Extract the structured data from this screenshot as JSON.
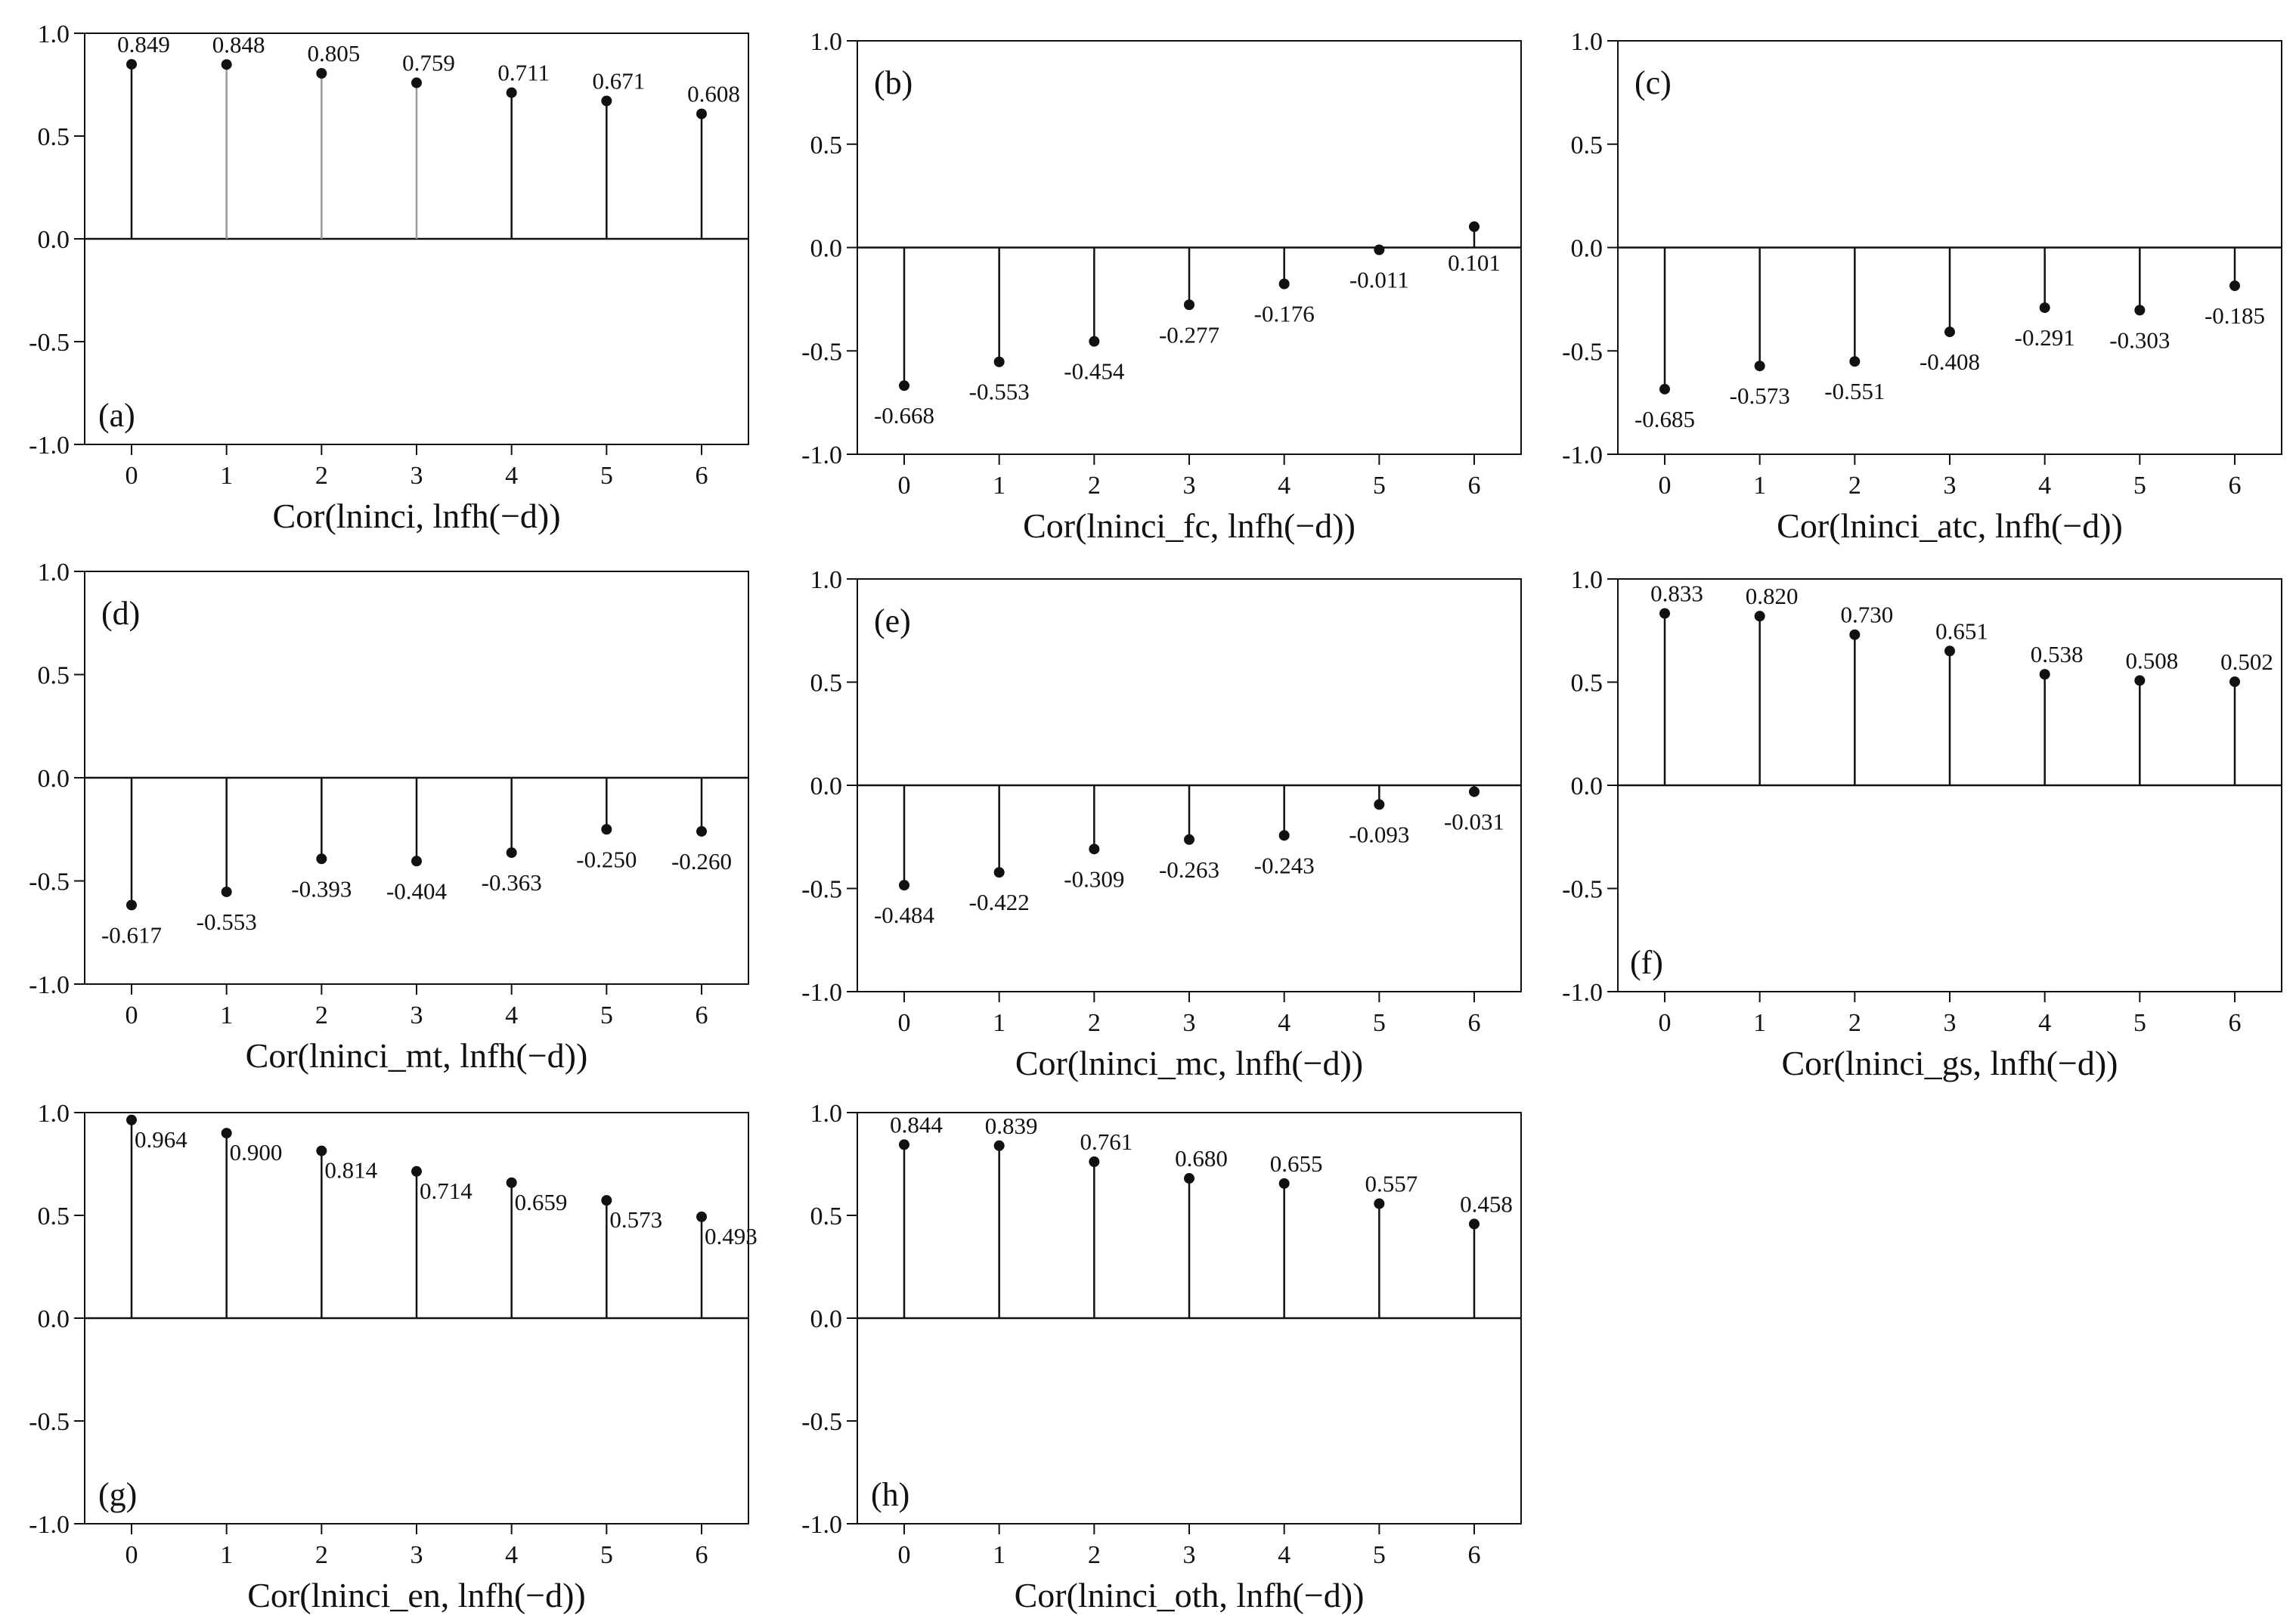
{
  "chart_data": [
    {
      "type": "stem",
      "panel_label": "(a)",
      "xlabel": "Cor(lninci, lnfh(−d))",
      "x": [
        0,
        1,
        2,
        3,
        4,
        5,
        6
      ],
      "values": [
        0.849,
        0.848,
        0.805,
        0.759,
        0.711,
        0.671,
        0.608
      ],
      "value_labels": [
        "0.849",
        "0.848",
        "0.805",
        "0.759",
        "0.711",
        "0.671",
        "0.608"
      ],
      "stem_colors": [
        "#111111",
        "#999999",
        "#999999",
        "#999999",
        "#111111",
        "#111111",
        "#111111"
      ],
      "ylim": [
        -1.0,
        1.0
      ],
      "yticks": [
        1.0,
        0.5,
        0.0,
        -0.5,
        -1.0
      ],
      "ytick_labels": [
        "1.0",
        "0.5",
        "0.0",
        "-0.5",
        "-1.0"
      ],
      "xticks": [
        "0",
        "1",
        "2",
        "3",
        "4",
        "5",
        "6"
      ],
      "label_placement": "above",
      "panel_label_position": "bottom-left"
    },
    {
      "type": "stem",
      "panel_label": "(b)",
      "xlabel": "Cor(lninci_fc, lnfh(−d))",
      "x": [
        0,
        1,
        2,
        3,
        4,
        5,
        6
      ],
      "values": [
        -0.668,
        -0.553,
        -0.454,
        -0.277,
        -0.176,
        -0.011,
        0.101
      ],
      "value_labels": [
        "-0.668",
        "-0.553",
        "-0.454",
        "-0.277",
        "-0.176",
        "-0.011",
        "0.101"
      ],
      "ylim": [
        -1.0,
        1.0
      ],
      "yticks": [
        1.0,
        0.5,
        0.0,
        -0.5,
        -1.0
      ],
      "ytick_labels": [
        "1.0",
        "0.5",
        "0.0",
        "-0.5",
        "-1.0"
      ],
      "xticks": [
        "0",
        "1",
        "2",
        "3",
        "4",
        "5",
        "6"
      ],
      "label_placement": "below",
      "panel_label_position": "top-left"
    },
    {
      "type": "stem",
      "panel_label": "(c)",
      "xlabel": "Cor(lninci_atc, lnfh(−d))",
      "x": [
        0,
        1,
        2,
        3,
        4,
        5,
        6
      ],
      "values": [
        -0.685,
        -0.573,
        -0.551,
        -0.408,
        -0.291,
        -0.303,
        -0.185
      ],
      "value_labels": [
        "-0.685",
        "-0.573",
        "-0.551",
        "-0.408",
        "-0.291",
        "-0.303",
        "-0.185"
      ],
      "ylim": [
        -1.0,
        1.0
      ],
      "yticks": [
        1.0,
        0.5,
        0.0,
        -0.5,
        -1.0
      ],
      "ytick_labels": [
        "1.0",
        "0.5",
        "0.0",
        "-0.5",
        "-1.0"
      ],
      "xticks": [
        "0",
        "1",
        "2",
        "3",
        "4",
        "5",
        "6"
      ],
      "label_placement": "below",
      "panel_label_position": "top-left"
    },
    {
      "type": "stem",
      "panel_label": "(d)",
      "xlabel": "Cor(lninci_mt, lnfh(−d))",
      "x": [
        0,
        1,
        2,
        3,
        4,
        5,
        6
      ],
      "values": [
        -0.617,
        -0.553,
        -0.393,
        -0.404,
        -0.363,
        -0.25,
        -0.26
      ],
      "value_labels": [
        "-0.617",
        "-0.553",
        "-0.393",
        "-0.404",
        "-0.363",
        "-0.250",
        "-0.260"
      ],
      "ylim": [
        -1.0,
        1.0
      ],
      "yticks": [
        1.0,
        0.5,
        0.0,
        -0.5,
        -1.0
      ],
      "ytick_labels": [
        "1.0",
        "0.5",
        "0.0",
        "-0.5",
        "-1.0"
      ],
      "xticks": [
        "0",
        "1",
        "2",
        "3",
        "4",
        "5",
        "6"
      ],
      "label_placement": "below",
      "panel_label_position": "top-left"
    },
    {
      "type": "stem",
      "panel_label": "(e)",
      "xlabel": "Cor(lninci_mc, lnfh(−d))",
      "x": [
        0,
        1,
        2,
        3,
        4,
        5,
        6
      ],
      "values": [
        -0.484,
        -0.422,
        -0.309,
        -0.263,
        -0.243,
        -0.093,
        -0.031
      ],
      "value_labels": [
        "-0.484",
        "-0.422",
        "-0.309",
        "-0.263",
        "-0.243",
        "-0.093",
        "-0.031"
      ],
      "ylim": [
        -1.0,
        1.0
      ],
      "yticks": [
        1.0,
        0.5,
        0.0,
        -0.5,
        -1.0
      ],
      "ytick_labels": [
        "1.0",
        "0.5",
        "0.0",
        "-0.5",
        "-1.0"
      ],
      "xticks": [
        "0",
        "1",
        "2",
        "3",
        "4",
        "5",
        "6"
      ],
      "label_placement": "below",
      "panel_label_position": "top-left"
    },
    {
      "type": "stem",
      "panel_label": "(f)",
      "xlabel": "Cor(lninci_gs, lnfh(−d))",
      "x": [
        0,
        1,
        2,
        3,
        4,
        5,
        6
      ],
      "values": [
        0.833,
        0.82,
        0.73,
        0.651,
        0.538,
        0.508,
        0.502
      ],
      "value_labels": [
        "0.833",
        "0.820",
        "0.730",
        "0.651",
        "0.538",
        "0.508",
        "0.502"
      ],
      "ylim": [
        -1.0,
        1.0
      ],
      "yticks": [
        1.0,
        0.5,
        0.0,
        -0.5,
        -1.0
      ],
      "ytick_labels": [
        "1.0",
        "0.5",
        "0.0",
        "-0.5",
        "-1.0"
      ],
      "xticks": [
        "0",
        "1",
        "2",
        "3",
        "4",
        "5",
        "6"
      ],
      "label_placement": "above",
      "panel_label_position": "bottom-right"
    },
    {
      "type": "stem",
      "panel_label": "(g)",
      "xlabel": "Cor(lninci_en, lnfh(−d))",
      "x": [
        0,
        1,
        2,
        3,
        4,
        5,
        6
      ],
      "values": [
        0.964,
        0.9,
        0.814,
        0.714,
        0.659,
        0.573,
        0.493
      ],
      "value_labels": [
        "0.964",
        "0.900",
        "0.814",
        "0.714",
        "0.659",
        "0.573",
        "0.493"
      ],
      "ylim": [
        -1.0,
        1.0
      ],
      "yticks": [
        1.0,
        0.5,
        0.0,
        -0.5,
        -1.0
      ],
      "ytick_labels": [
        "1.0",
        "0.5",
        "0.0",
        "-0.5",
        "-1.0"
      ],
      "xticks": [
        "0",
        "1",
        "2",
        "3",
        "4",
        "5",
        "6"
      ],
      "label_placement": "right",
      "panel_label_position": "bottom-left"
    },
    {
      "type": "stem",
      "panel_label": "(h)",
      "xlabel": "Cor(lninci_oth, lnfh(−d))",
      "x": [
        0,
        1,
        2,
        3,
        4,
        5,
        6
      ],
      "values": [
        0.844,
        0.839,
        0.761,
        0.68,
        0.655,
        0.557,
        0.458
      ],
      "value_labels": [
        "0.844",
        "0.839",
        "0.761",
        "0.680",
        "0.655",
        "0.557",
        "0.458"
      ],
      "ylim": [
        -1.0,
        1.0
      ],
      "yticks": [
        1.0,
        0.5,
        0.0,
        -0.5,
        -1.0
      ],
      "ytick_labels": [
        "1.0",
        "0.5",
        "0.0",
        "-0.5",
        "-1.0"
      ],
      "xticks": [
        "0",
        "1",
        "2",
        "3",
        "4",
        "5",
        "6"
      ],
      "label_placement": "above",
      "panel_label_position": "bottom-left"
    }
  ]
}
